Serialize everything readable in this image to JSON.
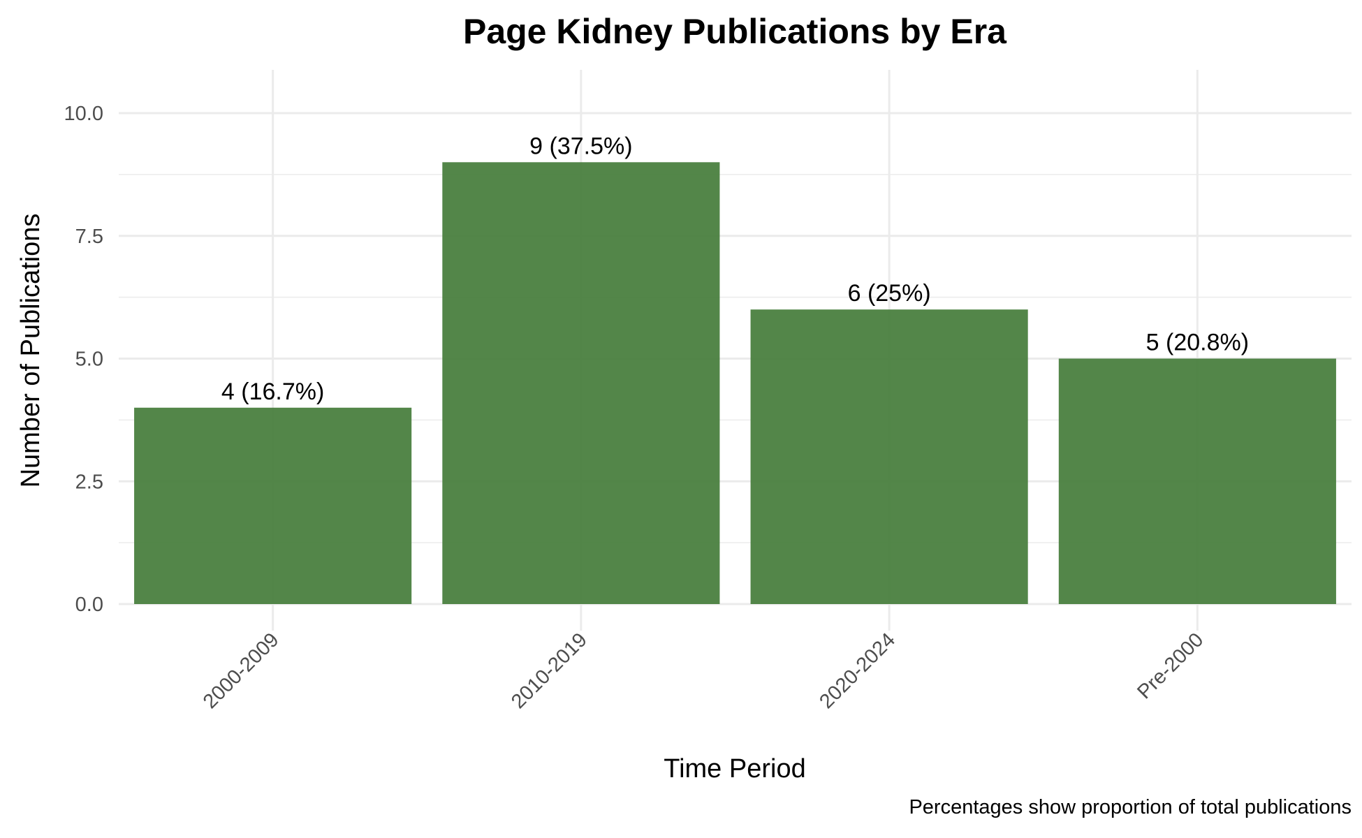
{
  "chart_data": {
    "type": "bar",
    "title": "Page Kidney Publications by Era",
    "xlabel": "Time Period",
    "ylabel": "Number of Publications",
    "caption": "Percentages show proportion of total publications",
    "categories": [
      "2000-2009",
      "2010-2019",
      "2020-2024",
      "Pre-2000"
    ],
    "values": [
      4,
      9,
      6,
      5
    ],
    "data_labels": [
      "4 (16.7%)",
      "9 (37.5%)",
      "6 (25%)",
      "5 (20.8%)"
    ],
    "yticks": [
      0,
      2.5,
      5,
      7.5,
      10
    ],
    "ytick_labels": [
      "0.0",
      "2.5",
      "5.0",
      "7.5",
      "10.0"
    ],
    "ylim": [
      0,
      10.9
    ],
    "grid": true,
    "bar_color": "#4a7f3f",
    "grid_color": "#ebebeb"
  }
}
